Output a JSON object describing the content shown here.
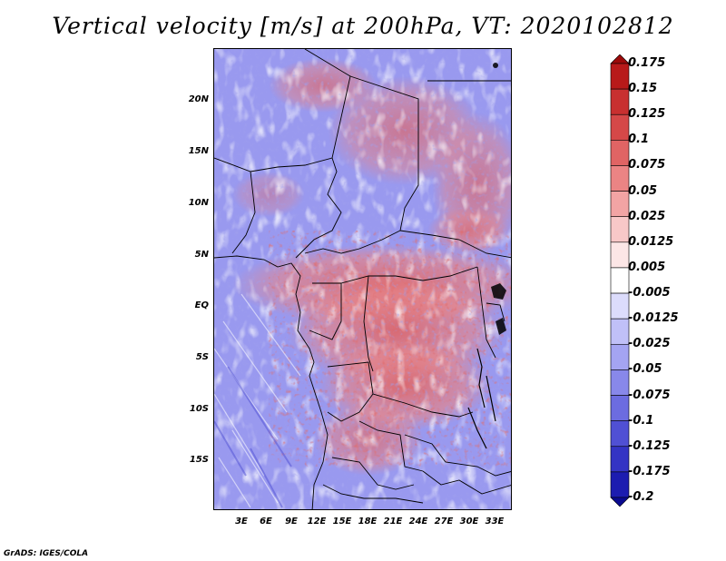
{
  "title": "Vertical velocity [m/s] at 200hPa, VT: 2020102812",
  "credit": "GrADS: IGES/COLA",
  "latitude_labels": [
    "20N",
    "15N",
    "10N",
    "5N",
    "EQ",
    "5S",
    "10S",
    "15S"
  ],
  "longitude_labels": [
    "3E",
    "6E",
    "9E",
    "12E",
    "15E",
    "18E",
    "21E",
    "24E",
    "27E",
    "30E",
    "33E"
  ],
  "colorbar": {
    "labels": [
      "0.175",
      "0.15",
      "0.125",
      "0.1",
      "0.075",
      "0.05",
      "0.025",
      "0.0125",
      "0.005",
      "-0.005",
      "-0.0125",
      "-0.025",
      "-0.05",
      "-0.075",
      "-0.1",
      "-0.125",
      "-0.175",
      "-0.2"
    ],
    "colors": [
      "#9c0a0a",
      "#b81a1a",
      "#c83030",
      "#d54848",
      "#e06464",
      "#eb8484",
      "#f2a4a4",
      "#f8c8c8",
      "#fce6e6",
      "#ffffff",
      "#dcdcfc",
      "#c0c0f8",
      "#a4a4f2",
      "#8888ea",
      "#6c6ce0",
      "#5050d4",
      "#3434c4",
      "#1c1cb0",
      "#0a0a90"
    ]
  },
  "colors": {
    "background_blue": "#a4a4f2",
    "positive_red": "#e06464",
    "strong_red": "#c83030",
    "strong_blue": "#5050d4"
  }
}
